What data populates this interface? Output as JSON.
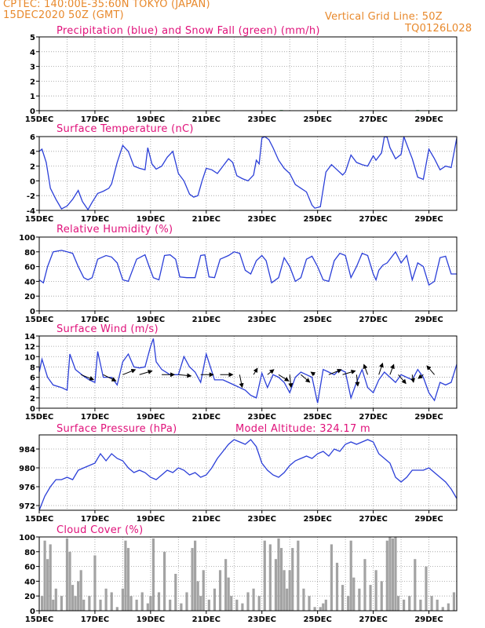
{
  "header": {
    "line1": "CPTEC:   140:00E-35:60N   TOKYO (JAPAN)",
    "line2": "15DEC2020  50Z (GMT)",
    "grid_note": "Vertical Grid Line: 50Z",
    "code": "TQ0126L028",
    "altitude": "Model Altitude: 324.17 m"
  },
  "colors": {
    "header": "#e8892c",
    "title": "#e0117a",
    "line": "#2b3fd8",
    "bar": "#a3a3a3",
    "precip": "#0a8f2a"
  },
  "x_ticks": [
    "15DEC",
    "17DEC",
    "19DEC",
    "21DEC",
    "23DEC",
    "25DEC",
    "27DEC",
    "29DEC"
  ],
  "chart_data": [
    {
      "type": "bar",
      "title": "Precipitation (blue) and Snow Fall (green) (mm/h)",
      "ylim": [
        0,
        5
      ],
      "yticks": [
        0,
        1,
        2,
        3,
        4,
        5
      ],
      "x_range_days": [
        15,
        30
      ],
      "series": [
        {
          "name": "Precipitation (blue)",
          "x": [],
          "values": []
        },
        {
          "name": "Snow Fall (green)",
          "x": [
            19.5,
            20.1,
            23.7,
            25.8,
            26.9,
            28.6
          ],
          "values": [
            0.03,
            0.03,
            0.04,
            0.03,
            0.03,
            0.04
          ]
        }
      ]
    },
    {
      "type": "line",
      "title": "Surface Temperature (nC)",
      "ylim": [
        -4,
        6
      ],
      "yticks": [
        -4,
        -2,
        0,
        2,
        4,
        6
      ],
      "x_range_days": [
        15,
        30
      ],
      "x": [
        15.0,
        15.1,
        15.25,
        15.4,
        15.6,
        15.8,
        16.0,
        16.2,
        16.4,
        16.55,
        16.75,
        16.9,
        17.1,
        17.3,
        17.5,
        17.6,
        17.8,
        18.0,
        18.2,
        18.4,
        18.6,
        18.8,
        18.9,
        19.05,
        19.2,
        19.4,
        19.6,
        19.8,
        20.0,
        20.2,
        20.4,
        20.55,
        20.7,
        20.85,
        21.0,
        21.2,
        21.4,
        21.6,
        21.8,
        21.95,
        22.1,
        22.3,
        22.5,
        22.7,
        22.8,
        22.9,
        23.0,
        23.1,
        23.25,
        23.4,
        23.6,
        23.8,
        24.0,
        24.2,
        24.4,
        24.6,
        24.8,
        24.9,
        25.1,
        25.3,
        25.5,
        25.7,
        25.9,
        26.0,
        26.2,
        26.4,
        26.6,
        26.8,
        27.0,
        27.1,
        27.3,
        27.4,
        27.5,
        27.6,
        27.8,
        28.0,
        28.1,
        28.25,
        28.4,
        28.6,
        28.8,
        29.0,
        29.2,
        29.4,
        29.6,
        29.8,
        30.0
      ],
      "values": [
        4.0,
        4.3,
        2.5,
        -1.0,
        -2.5,
        -3.8,
        -3.4,
        -2.5,
        -1.3,
        -2.8,
        -3.9,
        -2.9,
        -1.7,
        -1.4,
        -1.0,
        -0.4,
        2.5,
        4.8,
        4.0,
        2.0,
        1.7,
        1.5,
        4.5,
        2.3,
        1.6,
        2.0,
        3.2,
        4.0,
        1.0,
        0.0,
        -1.8,
        -2.2,
        -2.0,
        0.0,
        1.7,
        1.5,
        1.0,
        2.0,
        3.0,
        2.5,
        0.7,
        0.3,
        0.0,
        0.8,
        2.8,
        2.3,
        5.8,
        6.0,
        5.6,
        4.5,
        2.8,
        1.7,
        1.0,
        -0.5,
        -1.0,
        -1.5,
        -3.3,
        -3.7,
        -3.5,
        1.2,
        2.2,
        1.5,
        0.8,
        1.2,
        3.5,
        2.5,
        2.2,
        2.0,
        3.4,
        2.8,
        3.8,
        6.0,
        5.9,
        4.5,
        3.0,
        3.6,
        6.0,
        4.5,
        3.0,
        0.5,
        0.2,
        4.3,
        3.0,
        1.5,
        2.0,
        1.8,
        5.8
      ]
    },
    {
      "type": "line",
      "title": "Relative Humidity (%)",
      "ylim": [
        0,
        100
      ],
      "yticks": [
        0,
        20,
        40,
        60,
        80,
        100
      ],
      "x_range_days": [
        15,
        30
      ],
      "x": [
        15.0,
        15.15,
        15.3,
        15.5,
        15.8,
        16.0,
        16.2,
        16.4,
        16.6,
        16.75,
        16.9,
        17.1,
        17.4,
        17.6,
        17.8,
        18.0,
        18.2,
        18.5,
        18.8,
        18.95,
        19.1,
        19.3,
        19.5,
        19.7,
        19.9,
        20.05,
        20.3,
        20.6,
        20.8,
        20.95,
        21.1,
        21.3,
        21.5,
        21.8,
        22.0,
        22.2,
        22.4,
        22.6,
        22.8,
        23.0,
        23.15,
        23.35,
        23.6,
        23.8,
        24.0,
        24.2,
        24.4,
        24.6,
        24.8,
        25.0,
        25.2,
        25.4,
        25.6,
        25.8,
        26.0,
        26.2,
        26.4,
        26.6,
        26.8,
        27.0,
        27.1,
        27.2,
        27.35,
        27.5,
        27.8,
        28.0,
        28.2,
        28.4,
        28.6,
        28.8,
        29.0,
        29.2,
        29.4,
        29.6,
        29.8,
        30.0
      ],
      "values": [
        42,
        38,
        60,
        80,
        82,
        80,
        78,
        60,
        45,
        42,
        45,
        70,
        75,
        73,
        65,
        42,
        40,
        70,
        76,
        60,
        45,
        42,
        75,
        76,
        70,
        46,
        45,
        45,
        75,
        76,
        46,
        45,
        70,
        75,
        80,
        78,
        55,
        50,
        68,
        75,
        68,
        38,
        45,
        72,
        60,
        40,
        45,
        70,
        74,
        60,
        42,
        40,
        68,
        78,
        75,
        45,
        60,
        78,
        75,
        50,
        42,
        55,
        62,
        65,
        80,
        65,
        75,
        42,
        65,
        60,
        35,
        40,
        72,
        74,
        50,
        50
      ]
    },
    {
      "type": "line",
      "title": "Surface Wind (m/s)",
      "ylim": [
        0,
        14
      ],
      "yticks": [
        0,
        2,
        4,
        6,
        8,
        10,
        12,
        14
      ],
      "x_range_days": [
        15,
        30
      ],
      "x": [
        15.0,
        15.1,
        15.3,
        15.5,
        15.8,
        16.0,
        16.1,
        16.3,
        16.6,
        16.8,
        17.0,
        17.1,
        17.3,
        17.6,
        17.8,
        18.0,
        18.2,
        18.4,
        18.6,
        18.8,
        19.0,
        19.1,
        19.2,
        19.4,
        19.7,
        20.0,
        20.2,
        20.4,
        20.6,
        20.8,
        21.0,
        21.3,
        21.6,
        21.8,
        22.0,
        22.2,
        22.4,
        22.6,
        22.8,
        23.0,
        23.2,
        23.4,
        23.6,
        23.8,
        24.0,
        24.2,
        24.4,
        24.6,
        24.8,
        25.0,
        25.2,
        25.4,
        25.6,
        25.8,
        26.0,
        26.2,
        26.4,
        26.6,
        26.8,
        27.0,
        27.2,
        27.4,
        27.6,
        27.8,
        28.0,
        28.2,
        28.4,
        28.6,
        28.8,
        29.0,
        29.2,
        29.4,
        29.6,
        29.8,
        30.0
      ],
      "values": [
        7,
        9.5,
        6,
        4.5,
        4,
        3.5,
        10.5,
        7.5,
        6.2,
        5.5,
        5,
        11,
        6,
        6,
        4.5,
        9,
        10.5,
        8,
        7.8,
        8,
        12,
        13.5,
        9,
        7.5,
        6.5,
        6.5,
        10,
        8,
        7,
        5,
        10.5,
        5.5,
        5.5,
        5,
        4.5,
        4,
        3.5,
        2.5,
        2,
        6.8,
        4,
        6.5,
        6,
        5,
        3,
        6,
        7,
        6.5,
        6,
        1,
        7.5,
        7,
        6.5,
        7.5,
        7,
        2,
        5,
        7.5,
        4,
        3,
        5.5,
        7,
        6,
        5,
        6.5,
        6,
        5.5,
        7.5,
        6,
        3,
        1.5,
        5,
        4.5,
        5,
        8.5
      ],
      "arrows": [
        {
          "x": 16.5,
          "u": 1.0,
          "v": -0.4
        },
        {
          "x": 17.3,
          "u": 1.0,
          "v": -0.5
        },
        {
          "x": 18.0,
          "u": 1.0,
          "v": 0.4
        },
        {
          "x": 18.6,
          "u": 1.0,
          "v": 0.3
        },
        {
          "x": 19.4,
          "u": 1.0,
          "v": 0.0
        },
        {
          "x": 20.0,
          "u": 1.0,
          "v": -0.1
        },
        {
          "x": 20.8,
          "u": 1.0,
          "v": 0.0
        },
        {
          "x": 21.5,
          "u": 1.0,
          "v": 0.0
        },
        {
          "x": 22.2,
          "u": 0.2,
          "v": -1.0
        },
        {
          "x": 22.7,
          "u": 0.3,
          "v": 0.5
        },
        {
          "x": 23.2,
          "u": 0.5,
          "v": 0.4
        },
        {
          "x": 23.6,
          "u": 0.8,
          "v": -0.5
        },
        {
          "x": 24.0,
          "u": 0.1,
          "v": -1.0
        },
        {
          "x": 24.4,
          "u": 0.7,
          "v": -0.6
        },
        {
          "x": 24.9,
          "u": -0.3,
          "v": 0.2
        },
        {
          "x": 25.4,
          "u": 1.0,
          "v": 0.4
        },
        {
          "x": 25.9,
          "u": 1.0,
          "v": 0.3
        },
        {
          "x": 26.4,
          "u": 0.1,
          "v": -0.9
        },
        {
          "x": 26.8,
          "u": -0.3,
          "v": 0.8
        },
        {
          "x": 27.2,
          "u": 0.3,
          "v": 0.9
        },
        {
          "x": 27.6,
          "u": 0.3,
          "v": 0.8
        },
        {
          "x": 27.9,
          "u": 0.6,
          "v": -0.7
        },
        {
          "x": 28.4,
          "u": 0.1,
          "v": -0.6
        },
        {
          "x": 28.8,
          "u": -0.4,
          "v": -0.3
        },
        {
          "x": 29.2,
          "u": -0.6,
          "v": 0.7
        }
      ]
    },
    {
      "type": "line",
      "title": "Surface Pressure (hPa)",
      "ylim": [
        971,
        987
      ],
      "yticks": [
        972,
        976,
        980,
        984
      ],
      "x_range_days": [
        15,
        30
      ],
      "x": [
        15.0,
        15.2,
        15.4,
        15.6,
        15.8,
        16.0,
        16.2,
        16.4,
        16.6,
        16.8,
        17.0,
        17.2,
        17.4,
        17.6,
        17.8,
        18.0,
        18.2,
        18.4,
        18.6,
        18.8,
        19.0,
        19.2,
        19.4,
        19.6,
        19.8,
        20.0,
        20.2,
        20.4,
        20.6,
        20.8,
        21.0,
        21.2,
        21.4,
        21.6,
        21.8,
        22.0,
        22.2,
        22.4,
        22.6,
        22.8,
        23.0,
        23.2,
        23.4,
        23.6,
        23.8,
        24.0,
        24.2,
        24.4,
        24.6,
        24.8,
        25.0,
        25.2,
        25.4,
        25.6,
        25.8,
        26.0,
        26.2,
        26.4,
        26.6,
        26.8,
        27.0,
        27.2,
        27.4,
        27.6,
        27.8,
        28.0,
        28.2,
        28.4,
        28.6,
        28.8,
        29.0,
        29.2,
        29.4,
        29.6,
        29.8,
        30.0
      ],
      "values": [
        971,
        974,
        976,
        977.5,
        977.5,
        978,
        977.5,
        979.5,
        980,
        980.5,
        981,
        983,
        981.5,
        983,
        982,
        981.5,
        980,
        979,
        979.5,
        979,
        978,
        977.5,
        978.5,
        979.5,
        979,
        980,
        979.5,
        978.5,
        979,
        978,
        978.5,
        980,
        982,
        983.5,
        985,
        986,
        985.5,
        985,
        986,
        984.5,
        981,
        979.5,
        978.5,
        978,
        979,
        980.5,
        981.5,
        982,
        982.5,
        982,
        983,
        983.5,
        982.5,
        984,
        983.5,
        985,
        985.5,
        985,
        985.5,
        986,
        985.5,
        983,
        982,
        981,
        978,
        977,
        978,
        979.5,
        979.5,
        979.5,
        980,
        979,
        978,
        977,
        975.5,
        973.5
      ]
    },
    {
      "type": "bar",
      "title": "Cloud Cover (%)",
      "ylim": [
        0,
        100
      ],
      "yticks": [
        0,
        20,
        40,
        60,
        80,
        100
      ],
      "x_range_days": [
        15,
        30
      ],
      "x": [
        15.1,
        15.2,
        15.3,
        15.4,
        15.5,
        15.6,
        15.8,
        16.0,
        16.1,
        16.2,
        16.3,
        16.4,
        16.5,
        16.6,
        16.8,
        17.0,
        17.2,
        17.4,
        17.6,
        17.8,
        18.0,
        18.1,
        18.2,
        18.3,
        18.5,
        18.7,
        18.9,
        19.0,
        19.1,
        19.3,
        19.5,
        19.7,
        19.9,
        20.1,
        20.3,
        20.5,
        20.6,
        20.7,
        20.8,
        20.9,
        21.1,
        21.3,
        21.5,
        21.7,
        21.8,
        21.9,
        22.1,
        22.3,
        22.5,
        22.7,
        22.9,
        23.1,
        23.3,
        23.5,
        23.6,
        23.7,
        23.8,
        23.9,
        24.0,
        24.1,
        24.3,
        24.5,
        24.7,
        24.9,
        25.1,
        25.2,
        25.3,
        25.5,
        25.7,
        25.9,
        26.1,
        26.2,
        26.3,
        26.5,
        26.7,
        26.9,
        27.1,
        27.3,
        27.5,
        27.6,
        27.7,
        27.8,
        27.9,
        28.1,
        28.3,
        28.5,
        28.7,
        28.9,
        29.1,
        29.3,
        29.5,
        29.7,
        29.9
      ],
      "values": [
        20,
        95,
        70,
        90,
        15,
        30,
        20,
        98,
        80,
        35,
        20,
        40,
        55,
        15,
        20,
        75,
        15,
        30,
        25,
        5,
        30,
        95,
        85,
        20,
        15,
        25,
        10,
        20,
        98,
        25,
        80,
        15,
        50,
        10,
        25,
        85,
        95,
        40,
        20,
        55,
        15,
        30,
        55,
        70,
        45,
        20,
        15,
        10,
        25,
        30,
        20,
        95,
        90,
        70,
        98,
        85,
        55,
        30,
        55,
        85,
        95,
        30,
        20,
        5,
        5,
        10,
        15,
        90,
        65,
        35,
        20,
        95,
        45,
        30,
        70,
        35,
        55,
        40,
        95,
        100,
        98,
        100,
        20,
        15,
        20,
        70,
        15,
        60,
        20,
        15,
        5,
        10,
        25
      ]
    }
  ]
}
